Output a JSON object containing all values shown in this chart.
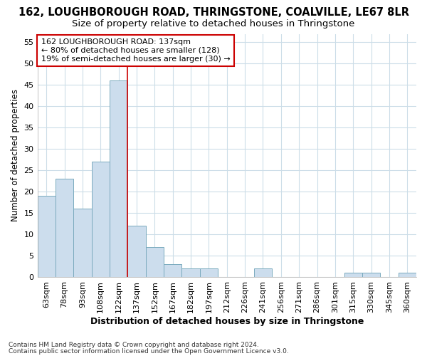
{
  "title": "162, LOUGHBOROUGH ROAD, THRINGSTONE, COALVILLE, LE67 8LR",
  "subtitle": "Size of property relative to detached houses in Thringstone",
  "xlabel": "Distribution of detached houses by size in Thringstone",
  "ylabel": "Number of detached properties",
  "footnote1": "Contains HM Land Registry data © Crown copyright and database right 2024.",
  "footnote2": "Contains public sector information licensed under the Open Government Licence v3.0.",
  "categories": [
    "63sqm",
    "78sqm",
    "93sqm",
    "108sqm",
    "122sqm",
    "137sqm",
    "152sqm",
    "167sqm",
    "182sqm",
    "197sqm",
    "212sqm",
    "226sqm",
    "241sqm",
    "256sqm",
    "271sqm",
    "286sqm",
    "301sqm",
    "315sqm",
    "330sqm",
    "345sqm",
    "360sqm"
  ],
  "values": [
    19,
    23,
    16,
    27,
    46,
    12,
    7,
    3,
    2,
    2,
    0,
    0,
    2,
    0,
    0,
    0,
    0,
    1,
    1,
    0,
    1
  ],
  "bar_color": "#ccdded",
  "bar_edge_color": "#7aaabe",
  "highlight_line_index": 5,
  "highlight_line_color": "#cc0000",
  "annotation_text": "162 LOUGHBOROUGH ROAD: 137sqm\n← 80% of detached houses are smaller (128)\n19% of semi-detached houses are larger (30) →",
  "annotation_box_color": "white",
  "annotation_box_edge_color": "#cc0000",
  "ylim": [
    0,
    57
  ],
  "yticks": [
    0,
    5,
    10,
    15,
    20,
    25,
    30,
    35,
    40,
    45,
    50,
    55
  ],
  "background_color": "#ffffff",
  "grid_color": "#ccdde8",
  "title_fontsize": 10.5,
  "subtitle_fontsize": 9.5,
  "xlabel_fontsize": 9,
  "ylabel_fontsize": 8.5,
  "tick_fontsize": 8,
  "annotation_fontsize": 8,
  "footnote_fontsize": 6.5
}
